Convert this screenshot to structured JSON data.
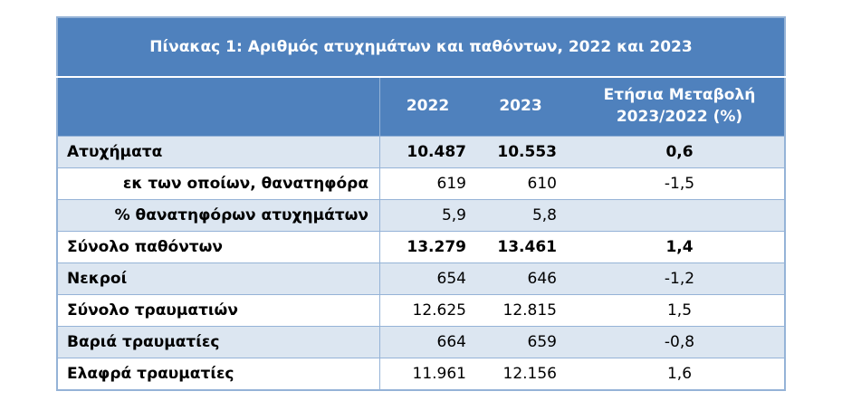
{
  "table": {
    "title": "Πίνακας 1: Αριθμός ατυχημάτων και παθόντων, 2022 και 2023",
    "header": [
      "2022",
      "2023",
      "Ετήσια Μεταβολή 2023/2022 (%)"
    ],
    "rows": [
      [
        "Ατυχήματα",
        "10.487",
        "10.553",
        "0,6"
      ],
      [
        "εκ των οποίων, θανατηφόρα",
        "619",
        "610",
        "-1,5"
      ],
      [
        "% θανατηφόρων ατυχημάτων",
        "5,9",
        "5,8"
      ],
      [
        "Σύνολο παθόντων",
        "13.279",
        "13.461",
        "1,4"
      ],
      [
        "Νεκροί",
        "654",
        "646",
        "-1,2"
      ],
      [
        "Σύνολο τραυματιών",
        "12.625",
        "12.815",
        "1,5"
      ],
      [
        "Βαριά τραυματίες",
        "664",
        "659",
        "-0,8"
      ],
      [
        "Ελαφρά τραυματίες",
        "11.961",
        "12.156",
        "1,6"
      ]
    ]
  }
}
